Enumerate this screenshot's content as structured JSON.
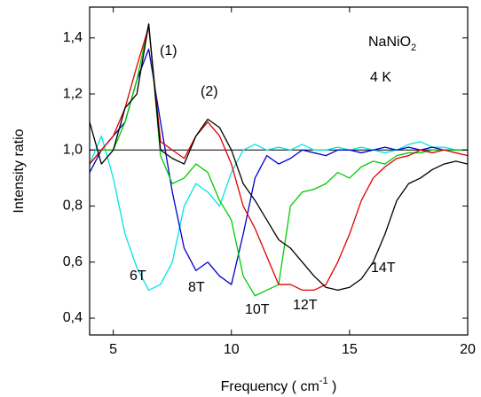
{
  "chart_data": {
    "type": "line",
    "ylabel": "Intensity ratio",
    "xlabel": [
      "Frequency ( cm",
      "-1",
      " )"
    ],
    "annotations": [
      "(1)",
      "(2)"
    ],
    "compound": [
      "NaNiO",
      "2"
    ],
    "condition": "4 K",
    "reference_line": 1.0,
    "xlim": [
      4,
      20
    ],
    "ylim": [
      0.34,
      1.51
    ],
    "xticks": [
      5,
      10,
      15,
      20
    ],
    "yticks": [
      {
        "value": 0.4,
        "label": "0,4"
      },
      {
        "value": 0.6,
        "label": "0,6"
      },
      {
        "value": 0.8,
        "label": "0,8"
      },
      {
        "value": 1.0,
        "label": "1,0"
      },
      {
        "value": 1.2,
        "label": "1,2"
      },
      {
        "value": 1.4,
        "label": "1,4"
      }
    ],
    "x": [
      4,
      4.5,
      5,
      5.5,
      6,
      6.5,
      7,
      7.5,
      8,
      8.5,
      9,
      9.5,
      10,
      10.5,
      11,
      11.5,
      12,
      12.5,
      13,
      13.5,
      14,
      14.5,
      15,
      15.5,
      16,
      16.5,
      17,
      17.5,
      18,
      18.5,
      19,
      19.5,
      20
    ],
    "series": [
      {
        "name": "6T",
        "color": "#00e5e5",
        "values": [
          0.95,
          1.05,
          0.9,
          0.7,
          0.58,
          0.5,
          0.52,
          0.6,
          0.8,
          0.88,
          0.85,
          0.8,
          0.92,
          1.0,
          1.02,
          1.0,
          1.01,
          1.0,
          1.02,
          1.0,
          1.0,
          1.01,
          1.0,
          1.01,
          1.0,
          0.99,
          1.0,
          1.02,
          1.03,
          1.01,
          1.01,
          1.0,
          1.0
        ]
      },
      {
        "name": "8T",
        "color": "#0000cc",
        "values": [
          0.92,
          1.0,
          1.05,
          1.1,
          1.25,
          1.36,
          1.1,
          0.85,
          0.65,
          0.57,
          0.6,
          0.55,
          0.52,
          0.7,
          0.9,
          0.98,
          0.95,
          0.97,
          1.0,
          0.99,
          0.98,
          1.0,
          1.0,
          0.99,
          1.0,
          1.01,
          1.0,
          1.01,
          1.0,
          1.01,
          1.0,
          1.0,
          1.0
        ]
      },
      {
        "name": "10T",
        "color": "#00cc00",
        "values": [
          0.95,
          1.0,
          1.0,
          1.1,
          1.25,
          1.45,
          0.98,
          0.88,
          0.9,
          0.95,
          0.92,
          0.82,
          0.75,
          0.55,
          0.48,
          0.5,
          0.52,
          0.8,
          0.85,
          0.86,
          0.88,
          0.92,
          0.9,
          0.94,
          0.96,
          0.95,
          0.98,
          0.99,
          0.99,
          1.0,
          1.0,
          1.0,
          1.0
        ]
      },
      {
        "name": "12T",
        "color": "#e00000",
        "values": [
          0.95,
          1.0,
          1.05,
          1.15,
          1.3,
          1.44,
          1.03,
          1.0,
          0.97,
          1.05,
          1.1,
          1.05,
          0.95,
          0.8,
          0.72,
          0.62,
          0.52,
          0.52,
          0.5,
          0.5,
          0.52,
          0.6,
          0.7,
          0.82,
          0.9,
          0.94,
          0.97,
          0.98,
          1.0,
          0.99,
          1.0,
          0.99,
          0.98
        ]
      },
      {
        "name": "14T",
        "color": "#000000",
        "values": [
          1.1,
          0.95,
          1.0,
          1.15,
          1.2,
          1.45,
          1.0,
          0.97,
          0.95,
          1.05,
          1.11,
          1.08,
          1.0,
          0.88,
          0.82,
          0.75,
          0.68,
          0.65,
          0.6,
          0.55,
          0.51,
          0.5,
          0.51,
          0.54,
          0.6,
          0.7,
          0.82,
          0.88,
          0.9,
          0.93,
          0.95,
          0.96,
          0.95
        ]
      }
    ]
  }
}
